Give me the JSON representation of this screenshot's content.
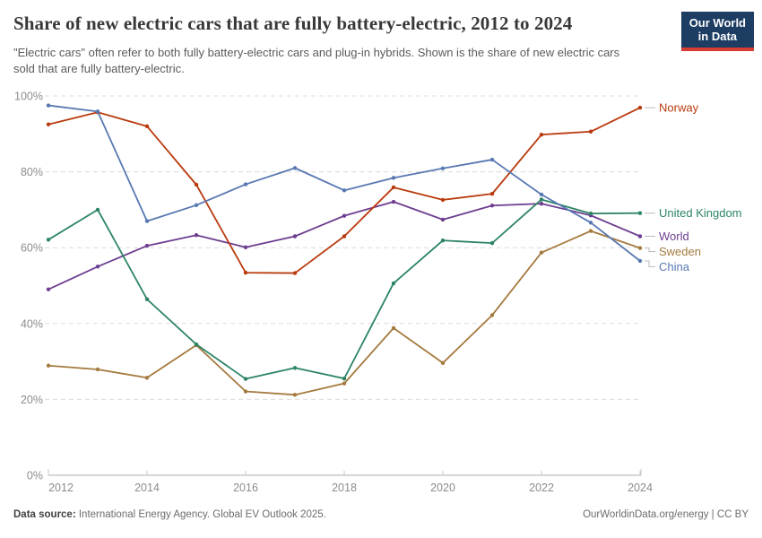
{
  "header": {
    "title": "Share of new electric cars that are fully battery-electric, 2012 to 2024",
    "subtitle": "\"Electric cars\" often refer to both fully battery-electric cars and plug-in hybrids. Shown is the share of new electric cars sold that are fully battery-electric.",
    "logo": {
      "line1": "Our World",
      "line2": "in Data",
      "bg_color": "#1d3d63",
      "accent_color": "#d73c32"
    }
  },
  "chart_data": {
    "type": "line",
    "x": [
      2012,
      2013,
      2014,
      2015,
      2016,
      2017,
      2018,
      2019,
      2020,
      2021,
      2022,
      2023,
      2024
    ],
    "series": [
      {
        "name": "Norway",
        "color": "#b93a0d",
        "values": [
          92.5,
          95.7,
          92.0,
          76.6,
          53.4,
          53.3,
          63.0,
          75.9,
          72.6,
          74.2,
          89.8,
          90.6,
          96.9
        ]
      },
      {
        "name": "United Kingdom",
        "color": "#2c8465",
        "values": [
          62.1,
          70.0,
          46.4,
          34.5,
          25.4,
          28.3,
          25.5,
          50.6,
          61.9,
          61.2,
          72.7,
          69.0,
          69.1
        ]
      },
      {
        "name": "World",
        "color": "#6d3e91",
        "values": [
          49.0,
          55.0,
          60.5,
          63.3,
          60.1,
          63.0,
          68.4,
          72.1,
          67.4,
          71.1,
          71.6,
          68.5,
          63.0
        ]
      },
      {
        "name": "Sweden",
        "color": "#a57a3f",
        "values": [
          28.9,
          27.9,
          25.7,
          34.3,
          22.1,
          21.2,
          24.2,
          38.8,
          29.6,
          42.2,
          58.7,
          64.4,
          59.9
        ]
      },
      {
        "name": "China",
        "color": "#5878b2",
        "values": [
          97.5,
          95.9,
          67.0,
          71.2,
          76.7,
          81.0,
          75.1,
          78.4,
          80.9,
          83.2,
          74.0,
          66.6,
          56.5
        ]
      }
    ],
    "title": "Share of new electric cars that are fully battery-electric, 2012 to 2024",
    "xlabel": "",
    "ylabel": "",
    "ylim": [
      0,
      100
    ],
    "yticks": [
      0,
      20,
      40,
      60,
      80,
      100
    ],
    "ytick_suffix": "%",
    "xticks": [
      2012,
      2014,
      2016,
      2018,
      2020,
      2022,
      2024
    ],
    "grid": "horizontal-dashed",
    "legend_position": "right-of-lines",
    "draw_order": [
      "World",
      "Sweden",
      "United Kingdom",
      "Norway",
      "China"
    ]
  },
  "footer": {
    "datasource_label": "Data source:",
    "datasource_text": " International Energy Agency. Global EV Outlook 2025.",
    "attribution": "OurWorldinData.org/energy | CC BY"
  }
}
